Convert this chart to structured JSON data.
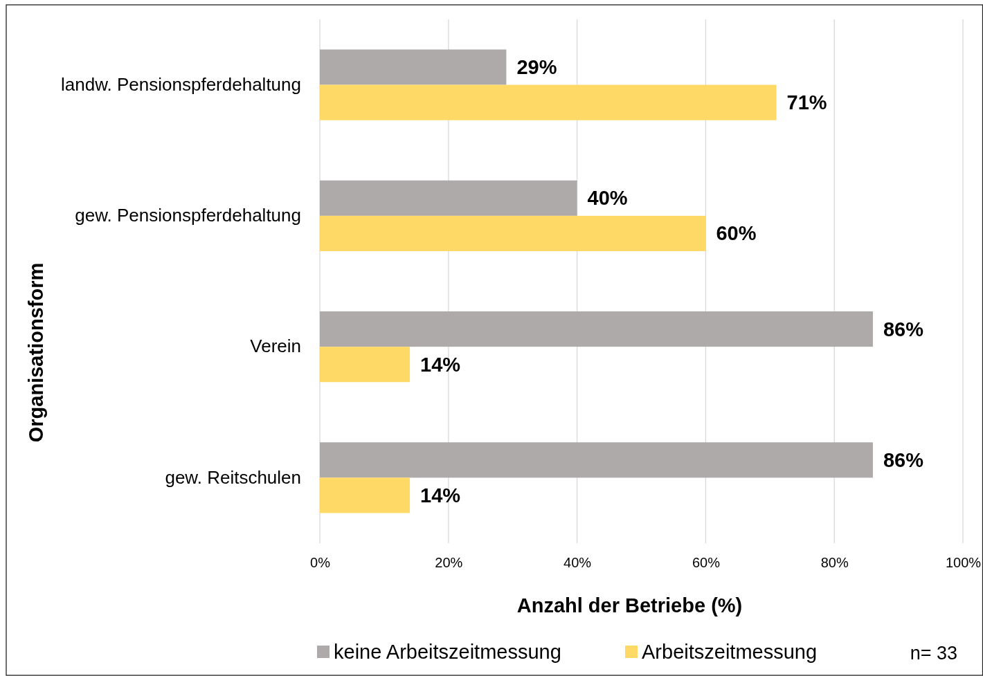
{
  "chart_data": {
    "type": "bar",
    "orientation": "horizontal",
    "categories": [
      "landw. Pensionspferdehaltung",
      "gew. Pensionspferdehaltung",
      "Verein",
      "gew. Reitschulen"
    ],
    "series": [
      {
        "name": "keine Arbeitszeitmessung",
        "color": "#aeaaaa",
        "values": [
          29,
          40,
          86,
          86
        ],
        "value_labels": [
          "29%",
          "40%",
          "86%",
          "86%"
        ]
      },
      {
        "name": "Arbeitszeitmessung",
        "color": "#ffd966",
        "values": [
          71,
          60,
          14,
          14
        ],
        "value_labels": [
          "71%",
          "60%",
          "14%",
          "14%"
        ]
      }
    ],
    "xlim": [
      0,
      100
    ],
    "xticks": [
      {
        "value": 0,
        "label": "0%"
      },
      {
        "value": 20,
        "label": "20%"
      },
      {
        "value": 40,
        "label": "40%"
      },
      {
        "value": 60,
        "label": "60%"
      },
      {
        "value": 80,
        "label": "80%"
      },
      {
        "value": 100,
        "label": "100%"
      }
    ],
    "xlabel": "Anzahl der Betriebe (%)",
    "ylabel": "Organisationsform",
    "grid": "x",
    "legend": "bottom",
    "annotations": [
      "n= 33"
    ]
  }
}
